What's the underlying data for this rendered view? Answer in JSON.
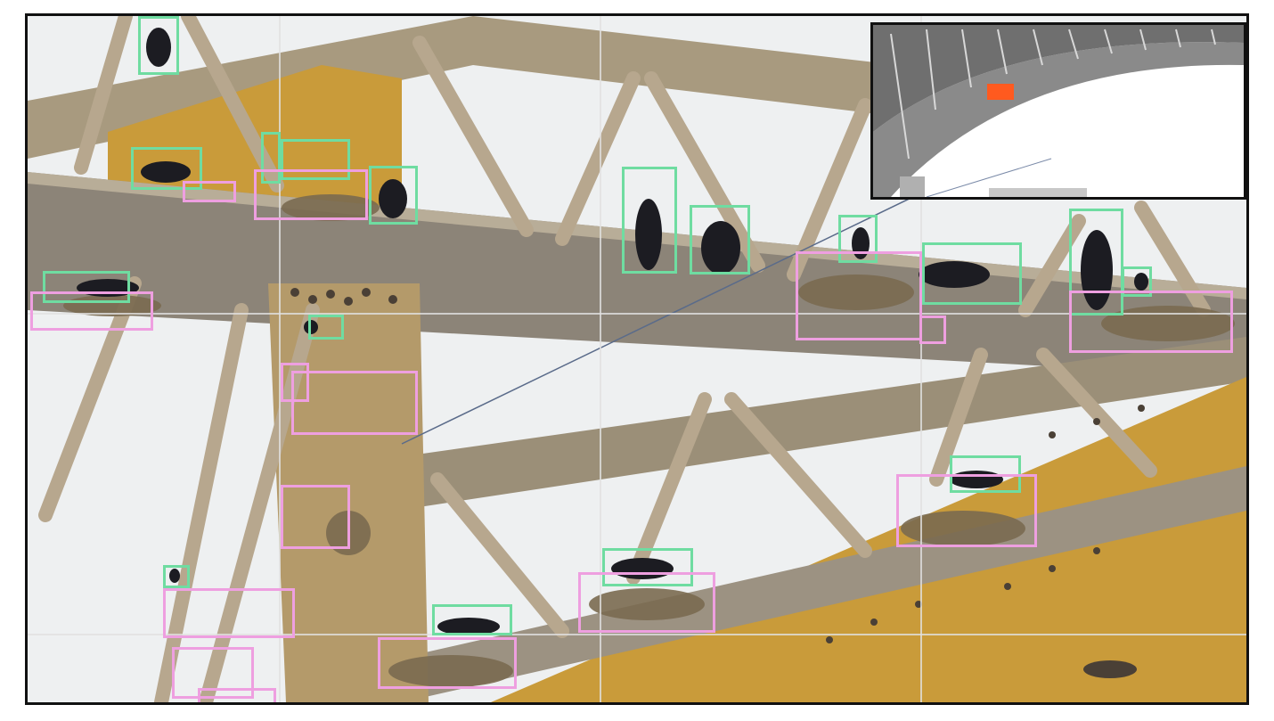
{
  "colors": {
    "bird_box": "#6fdca1",
    "nest_box": "#ee9fe0",
    "frame_border": "#111111",
    "sky": "#eef0f1",
    "girder_yellow": "#c99b3a",
    "girder_grey": "#8c8478",
    "strut": "#b7a78e",
    "bird": "#1c1c22",
    "nest_material": "#7a6a50",
    "inset_highlight": "#ff5a1f",
    "grid": "#e1e1e1"
  },
  "legend_semantics": {
    "bird_box_color": "green",
    "nest_box_color": "pink"
  },
  "inset": {
    "content": "bridge-arch-overview",
    "highlight_region": "orange-rectangle"
  },
  "counts": {
    "bird_boxes": 21,
    "nest_boxes": 16
  }
}
